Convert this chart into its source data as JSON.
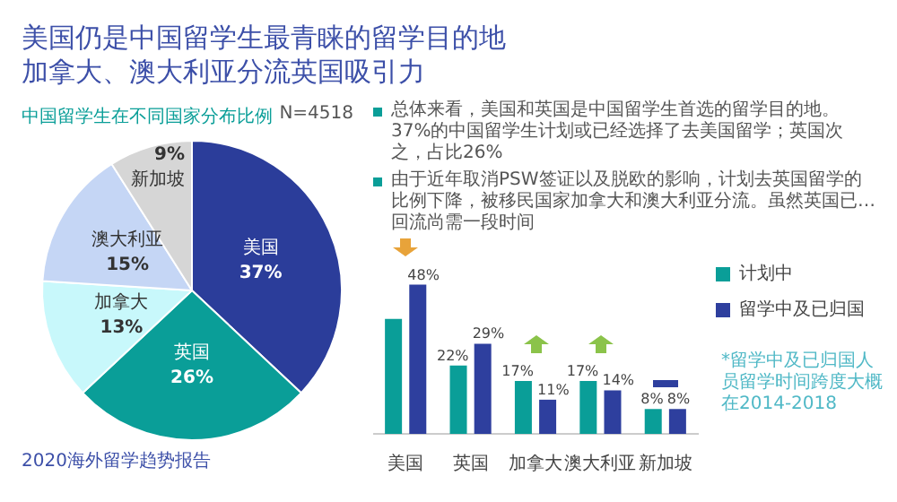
{
  "chart_data": [
    {
      "type": "other",
      "title": "美国仍是中国留学生最青睐的留学目的地",
      "subtitle": "加拿大、澳大利亚分流英国吸引力"
    },
    {
      "type": "pie",
      "title": "中国留学生在不同国家分布比例",
      "categories": [
        "美国",
        "英国",
        "加拿大",
        "澳大利亚",
        "新加坡"
      ],
      "values": [
        37,
        26,
        13,
        15,
        9
      ],
      "colors": [
        "#2b3d9a",
        "#0a9e98",
        "#c8f8fb",
        "#c5d6f5",
        "#d6d6d6"
      ],
      "value_labels": [
        "37%",
        "26%",
        "13%",
        "15%",
        "9%"
      ],
      "annotations": [
        "N=4518",
        "2020海外留学趋势报告"
      ]
    },
    {
      "type": "bar",
      "categories": [
        "美国",
        "英国",
        "加拿大",
        "澳大利亚",
        "新加坡"
      ],
      "series": [
        {
          "name": "计划中",
          "color": "#0a9e98",
          "values": [
            37,
            22,
            17,
            17,
            8
          ],
          "value_labels": [
            null,
            "22%",
            "17%",
            "17%",
            "8%"
          ]
        },
        {
          "name": "留学中及已归国",
          "color": "#2e3f9e",
          "values": [
            48,
            29,
            11,
            14,
            8
          ],
          "value_labels": [
            "48%",
            "29%",
            "11%",
            "14%",
            "8%"
          ]
        }
      ],
      "legend": "right",
      "annotations": [
        "*留学中及已归国人员留学时间跨度大概在2014-2018"
      ]
    },
    {
      "type": "other",
      "annotations": [
        "总体来看，美国和英国是中国留学生首选的留学目的地。37%的中国留学生计划或已经选择了去美国留学；英国次之，占比26%",
        "由于近年取消PSW签证以及脱欧的影响，计划去英国留学的比例下降，被移民国家加拿大和澳大利亚分流。虽然英国已…回流尚需一段时间"
      ]
    }
  ]
}
